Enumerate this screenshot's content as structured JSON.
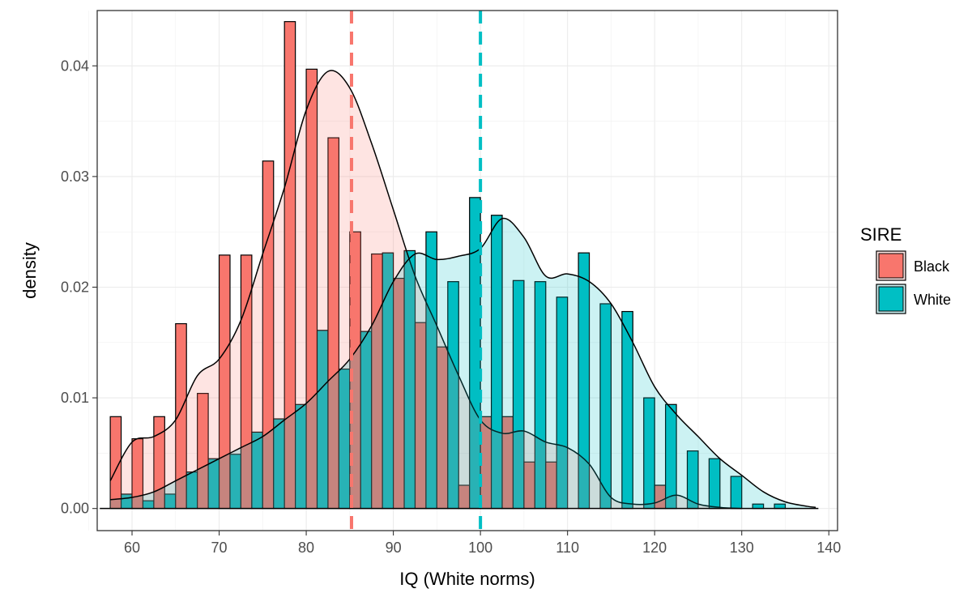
{
  "chart_data": {
    "type": "histogram",
    "title": "",
    "xlabel": "IQ (White norms)",
    "ylabel": "density",
    "xlim": [
      56,
      141
    ],
    "ylim": [
      -0.002,
      0.045
    ],
    "x_ticks": [
      60,
      70,
      80,
      90,
      100,
      110,
      120,
      130,
      140
    ],
    "y_ticks": [
      0.0,
      0.01,
      0.02,
      0.03,
      0.04
    ],
    "y_tick_labels": [
      "0.00",
      "0.01",
      "0.02",
      "0.03",
      "0.04"
    ],
    "grid": true,
    "legend": {
      "title": "SIRE",
      "position": "right"
    },
    "bin_width": 2.5,
    "bin_centers": [
      58.75,
      61.25,
      63.75,
      66.25,
      68.75,
      71.25,
      73.75,
      76.25,
      78.75,
      81.25,
      83.75,
      86.25,
      88.75,
      91.25,
      93.75,
      96.25,
      98.75,
      101.25,
      103.75,
      106.25,
      108.75,
      111.25,
      113.75,
      116.25,
      118.75,
      121.25,
      123.75,
      126.25,
      128.75,
      131.25,
      133.75,
      136.25,
      138.75
    ],
    "series": [
      {
        "name": "Black",
        "color": "#F8766D",
        "mean_line": 85.2,
        "histogram": [
          0.0083,
          0.0063,
          0.0083,
          0.0167,
          0.0104,
          0.0229,
          0.0229,
          0.0314,
          0.044,
          0.0397,
          0.0335,
          0.025,
          0.023,
          0.0208,
          0.0168,
          0.0146,
          0.0021,
          0.0083,
          0.0083,
          0.0042,
          0.0042,
          0.0,
          0.0,
          0.0,
          0.0,
          0.0021,
          0.0,
          0.0,
          0.0,
          0.0,
          0.0,
          0.0,
          0.0
        ],
        "density_x": [
          57.5,
          60,
          62.5,
          65,
          67.5,
          70,
          72.5,
          75,
          77.5,
          80,
          82.5,
          85,
          87.5,
          90,
          92.5,
          95,
          97.5,
          100,
          102.5,
          105,
          107.5,
          110,
          112.5,
          115,
          117.5,
          120,
          122.5,
          125,
          127.5,
          130
        ],
        "density_y": [
          0.0025,
          0.006,
          0.0065,
          0.008,
          0.012,
          0.0135,
          0.017,
          0.023,
          0.029,
          0.036,
          0.0395,
          0.038,
          0.033,
          0.027,
          0.021,
          0.0165,
          0.012,
          0.008,
          0.0068,
          0.007,
          0.006,
          0.0055,
          0.004,
          0.001,
          0.0004,
          0.0005,
          0.0012,
          0.0004,
          0.0001,
          0.0
        ]
      },
      {
        "name": "White",
        "color": "#00BFC4",
        "mean_line": 100.0,
        "histogram": [
          0.0013,
          0.0007,
          0.0013,
          0.0033,
          0.0045,
          0.0049,
          0.0069,
          0.0081,
          0.0094,
          0.0161,
          0.0126,
          0.016,
          0.0231,
          0.0233,
          0.025,
          0.0205,
          0.0281,
          0.0265,
          0.0206,
          0.0205,
          0.0191,
          0.0231,
          0.0185,
          0.0178,
          0.01,
          0.0094,
          0.0052,
          0.0045,
          0.0029,
          0.0004,
          0.0004,
          0.0,
          0.0
        ],
        "density_x": [
          57.5,
          60,
          62.5,
          65,
          67.5,
          70,
          72.5,
          75,
          77.5,
          80,
          82.5,
          85,
          87.5,
          90,
          92.5,
          95,
          97.5,
          100,
          102.5,
          105,
          107.5,
          110,
          112.5,
          115,
          117.5,
          120,
          122.5,
          125,
          127.5,
          130,
          132.5,
          135,
          137.5,
          138.5
        ],
        "density_y": [
          0.0008,
          0.001,
          0.0015,
          0.0025,
          0.0035,
          0.0045,
          0.0055,
          0.0065,
          0.008,
          0.0095,
          0.0115,
          0.0135,
          0.0165,
          0.0205,
          0.023,
          0.0225,
          0.0228,
          0.0235,
          0.0262,
          0.0245,
          0.021,
          0.0212,
          0.0205,
          0.0185,
          0.015,
          0.011,
          0.0085,
          0.0065,
          0.0045,
          0.003,
          0.0015,
          0.0006,
          0.0002,
          0.0001
        ]
      }
    ]
  }
}
